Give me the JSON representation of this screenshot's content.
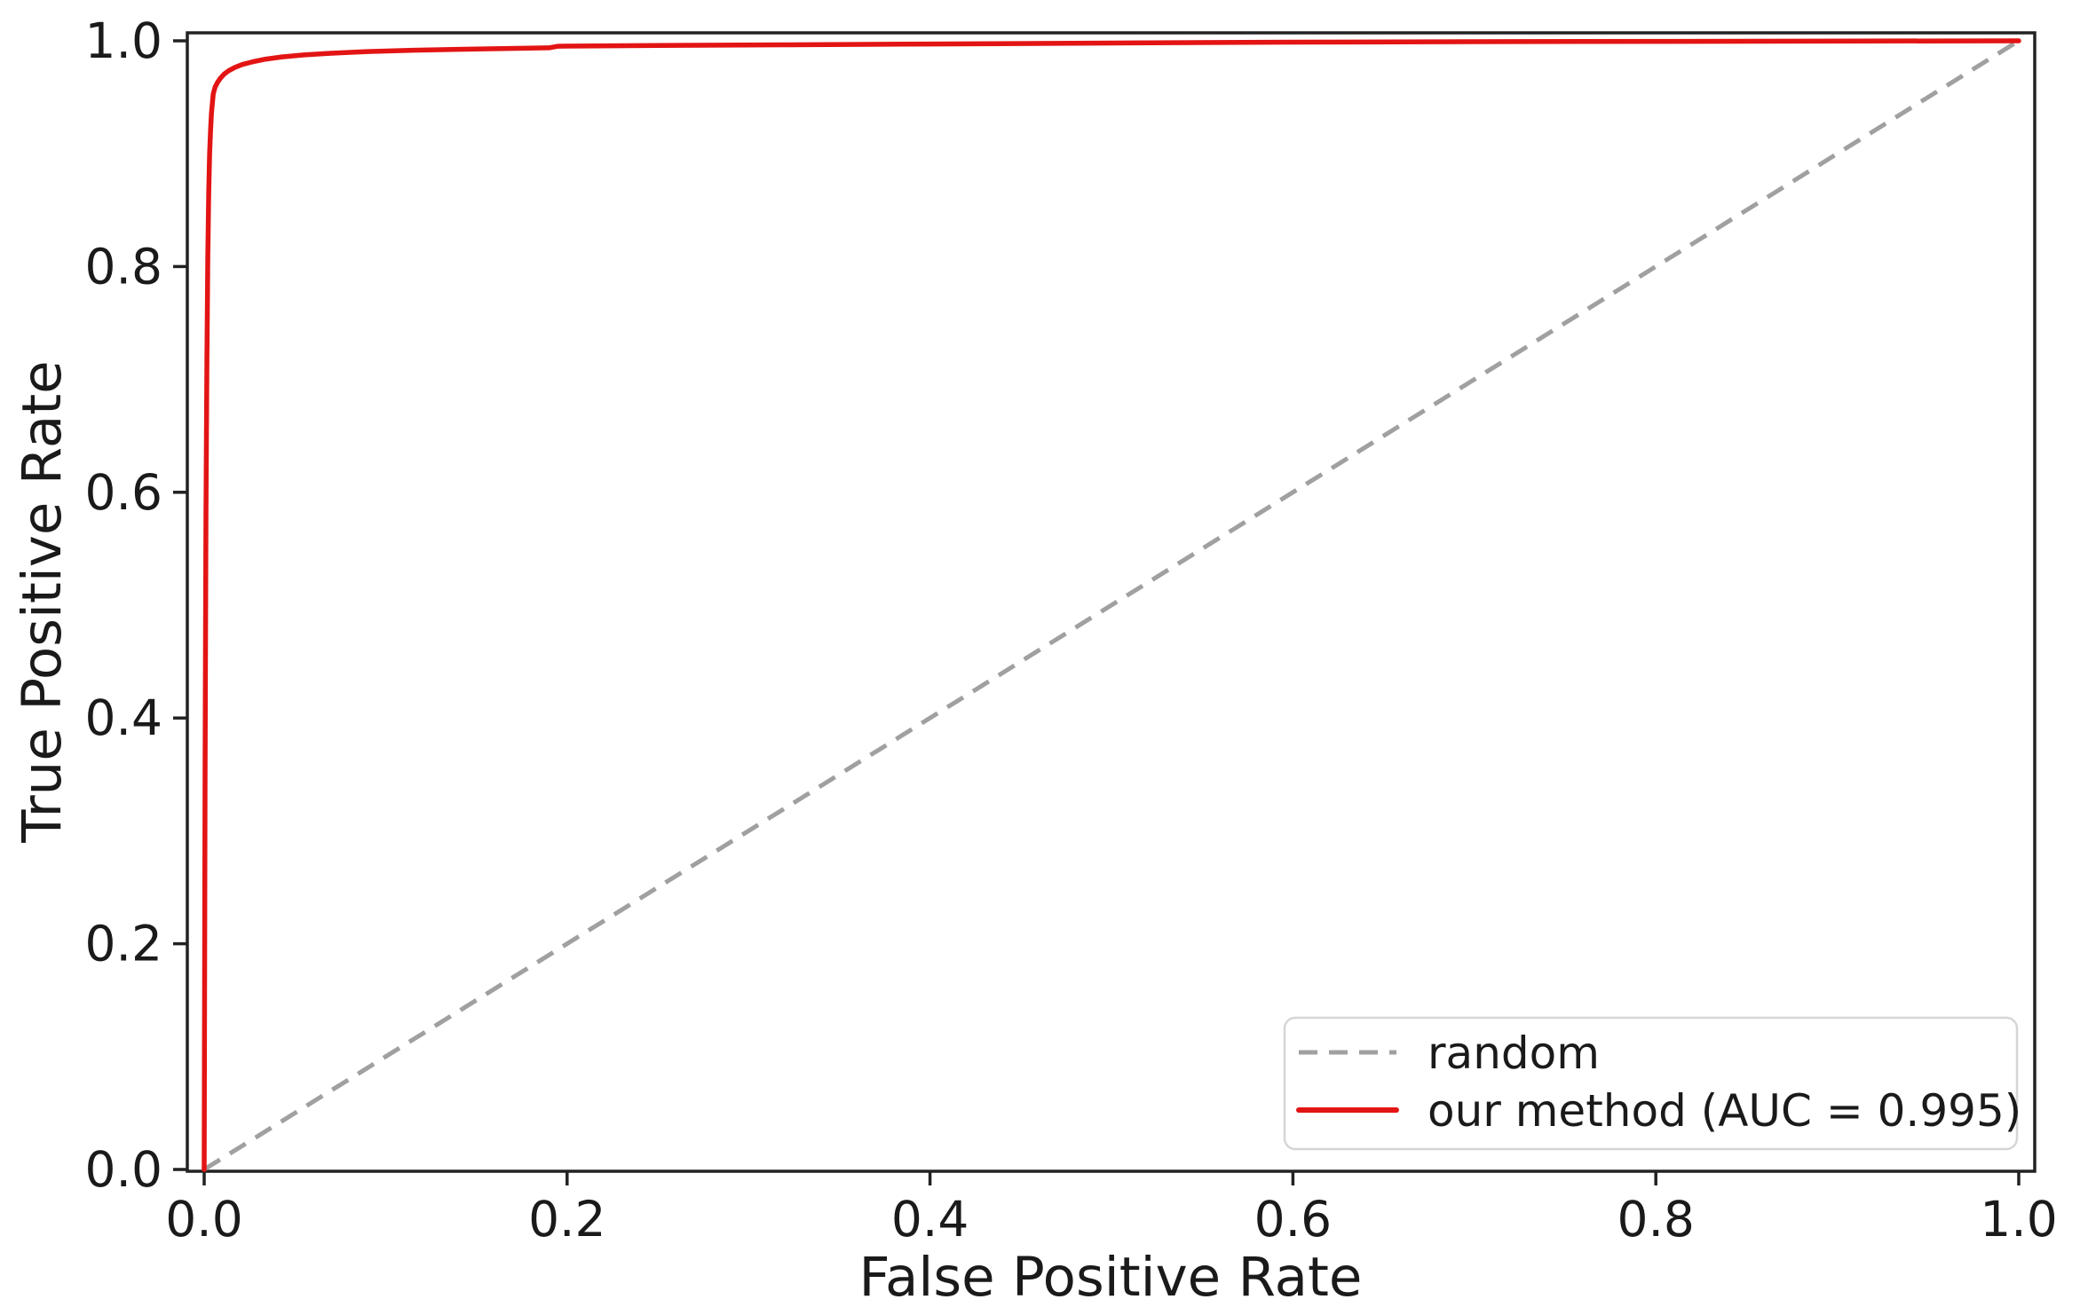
{
  "figure": {
    "background": "#ffffff",
    "text_color": "#1a1a1a",
    "spine_color": "#222222",
    "legend_border_color": "#d6d6d6",
    "legend_background": "#ffffff"
  },
  "chart_data": {
    "type": "line",
    "title": "",
    "xlabel": "False Positive Rate",
    "ylabel": "True Positive Rate",
    "xlim": [
      0.0,
      1.0
    ],
    "ylim": [
      0.0,
      1.0
    ],
    "grid": false,
    "x_ticks": {
      "values": [
        0.0,
        0.2,
        0.4,
        0.6,
        0.8,
        1.0
      ],
      "labels": [
        "0.0",
        "0.2",
        "0.4",
        "0.6",
        "0.8",
        "1.0"
      ]
    },
    "y_ticks": {
      "values": [
        0.0,
        0.2,
        0.4,
        0.6,
        0.8,
        1.0
      ],
      "labels": [
        "0.0",
        "0.2",
        "0.4",
        "0.6",
        "0.8",
        "1.0"
      ]
    },
    "legend": {
      "position": "lower right",
      "entries": [
        "random",
        "our method (AUC = 0.995)"
      ]
    },
    "series": [
      {
        "name": "random",
        "role": "chance-baseline",
        "line_style": "dashed",
        "color": "#a0a0a0",
        "x": [
          0.0,
          1.0
        ],
        "y": [
          0.0,
          1.0
        ]
      },
      {
        "name": "our method (AUC = 0.995)",
        "role": "roc-curve",
        "auc": 0.995,
        "line_style": "solid",
        "color": "#e31414",
        "x": [
          0.0,
          0.0005,
          0.001,
          0.0015,
          0.002,
          0.0025,
          0.003,
          0.0035,
          0.004,
          0.005,
          0.006,
          0.0075,
          0.009,
          0.011,
          0.0135,
          0.017,
          0.021,
          0.027,
          0.034,
          0.043,
          0.055,
          0.07,
          0.09,
          0.115,
          0.15,
          0.19,
          0.195,
          0.25,
          0.32,
          0.4,
          0.5,
          0.6,
          0.72,
          0.85,
          1.0
        ],
        "y": [
          0.0,
          0.35,
          0.58,
          0.72,
          0.81,
          0.865,
          0.9,
          0.921,
          0.936,
          0.953,
          0.959,
          0.9635,
          0.967,
          0.9705,
          0.9735,
          0.9765,
          0.979,
          0.9815,
          0.9838,
          0.9858,
          0.9875,
          0.989,
          0.9905,
          0.9917,
          0.9928,
          0.9938,
          0.9952,
          0.9958,
          0.9965,
          0.9972,
          0.998,
          0.9988,
          0.9993,
          0.9996,
          1.0
        ]
      }
    ]
  }
}
